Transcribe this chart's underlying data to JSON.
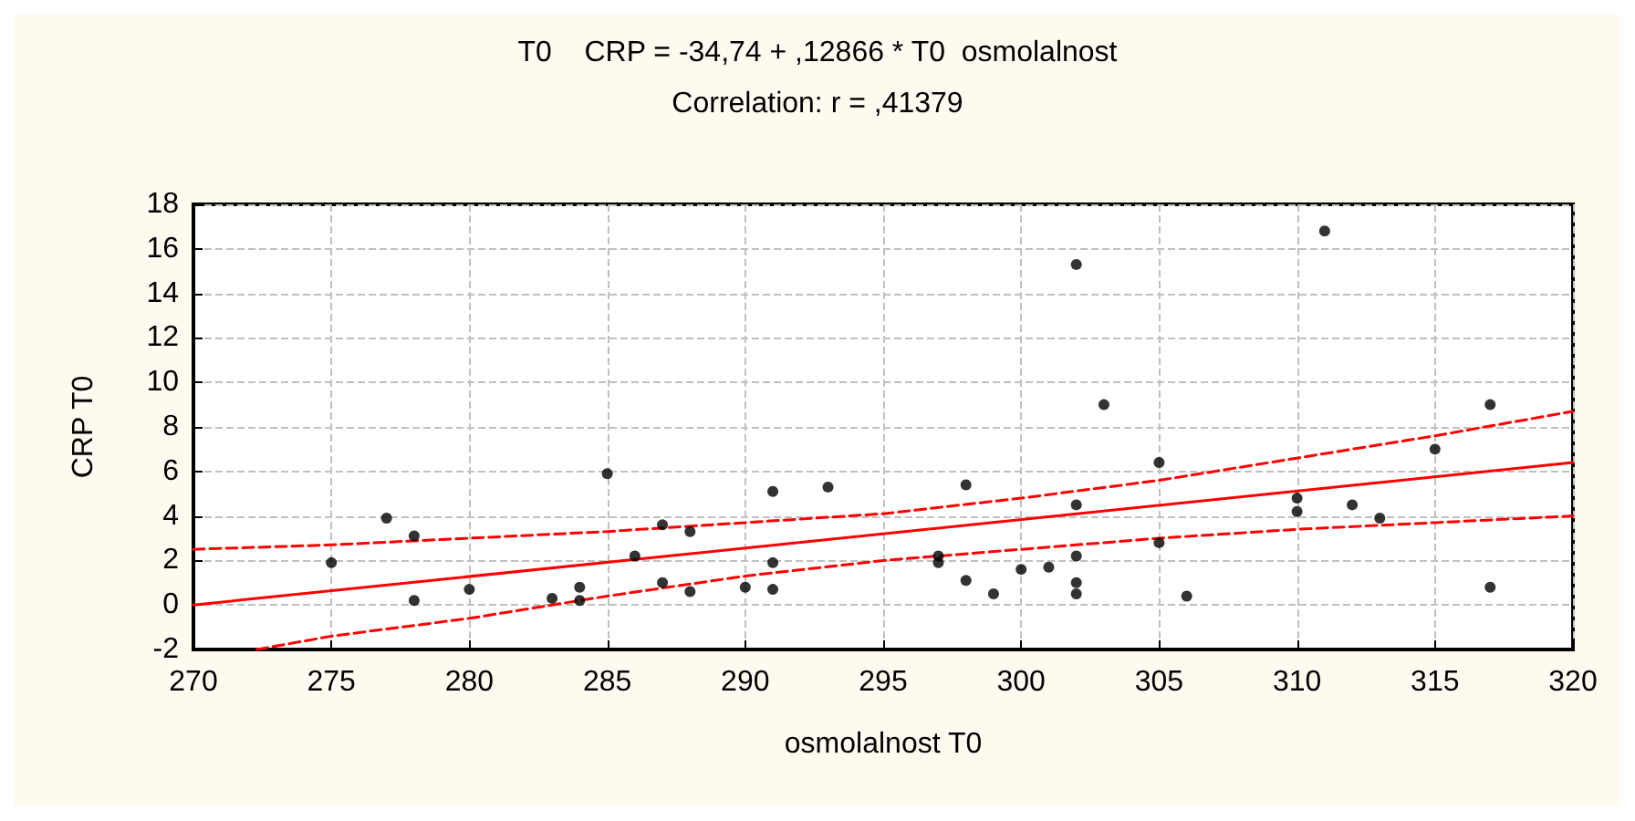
{
  "chart_data": {
    "type": "scatter",
    "title": "T0    CRP = -34,74 + ,12866 * T0  osmolalnost",
    "subtitle": "Correlation: r = ,41379",
    "xlabel": "osmolalnost T0",
    "ylabel": "CRP T0",
    "xlim": [
      270,
      320
    ],
    "xticks": [
      270,
      275,
      280,
      285,
      290,
      295,
      300,
      305,
      310,
      315,
      320
    ],
    "ylim": [
      -2,
      18
    ],
    "yticks": [
      -2,
      0,
      2,
      4,
      6,
      8,
      10,
      12,
      14,
      16,
      18
    ],
    "grid": true,
    "marker": "circle",
    "series": [
      {
        "color": "#000000",
        "x": [
          275,
          277,
          278,
          278,
          280,
          283,
          284,
          284,
          285,
          286,
          287,
          287,
          288,
          288,
          290,
          291,
          291,
          291,
          293,
          297,
          297,
          298,
          298,
          299,
          300,
          301,
          302,
          302,
          302,
          302,
          302,
          303,
          305,
          305,
          306,
          310,
          310,
          311,
          312,
          313,
          315,
          317,
          317
        ],
        "values": [
          1.9,
          3.9,
          3.1,
          0.2,
          0.7,
          0.3,
          0.2,
          0.8,
          5.9,
          2.2,
          3.6,
          1.0,
          3.3,
          0.6,
          0.8,
          5.1,
          1.9,
          0.7,
          5.3,
          2.2,
          1.9,
          5.4,
          1.1,
          0.5,
          1.6,
          1.7,
          15.3,
          4.5,
          2.2,
          1.0,
          0.5,
          9.0,
          6.4,
          2.8,
          0.4,
          4.8,
          4.2,
          16.8,
          4.5,
          3.9,
          7.0,
          9.0,
          0.8
        ]
      },
      {
        "type": "line",
        "color": "#ff0000",
        "line_style": "solid",
        "marker": "none",
        "x": [
          270,
          320
        ],
        "values": [
          0.0,
          6.4
        ]
      },
      {
        "type": "line",
        "color": "#ff0000",
        "line_style": "dashed",
        "marker": "none",
        "x": [
          270,
          275,
          280,
          285,
          290,
          295,
          300,
          305,
          310,
          315,
          320
        ],
        "values": [
          2.5,
          2.7,
          3.0,
          3.3,
          3.7,
          4.1,
          4.8,
          5.6,
          6.6,
          7.6,
          8.7
        ]
      },
      {
        "type": "line",
        "color": "#ff0000",
        "line_style": "dashed",
        "marker": "none",
        "x": [
          272.3,
          275,
          280,
          285,
          290,
          295,
          300,
          305,
          310,
          315,
          320
        ],
        "values": [
          -2,
          -1.4,
          -0.6,
          0.4,
          1.3,
          2.0,
          2.5,
          3.0,
          3.4,
          3.7,
          4.0
        ]
      }
    ]
  }
}
